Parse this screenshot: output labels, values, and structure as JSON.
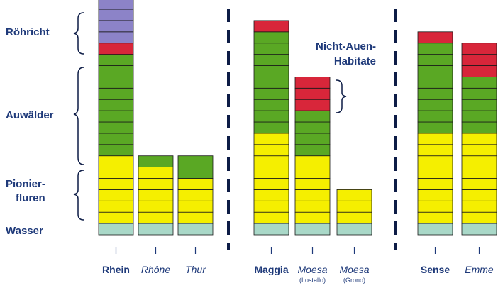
{
  "chart_data": {
    "type": "bar",
    "stacked": true,
    "title": "",
    "xlabel": "",
    "ylabel": "",
    "segment_height_levels": [
      "Wasser",
      "Pionierfluren",
      "Auwälder",
      "Röhricht"
    ],
    "y_axis_labels": [
      {
        "key": "roehricht",
        "text": "Röhricht"
      },
      {
        "key": "auwaelder",
        "text": "Auwälder"
      },
      {
        "key": "pionier_line1",
        "text": "Pionier-"
      },
      {
        "key": "pionier_line2",
        "text": "fluren"
      },
      {
        "key": "wasser",
        "text": "Wasser"
      }
    ],
    "annotation": {
      "line1": "Nicht-Auen-",
      "line2": "Habitate"
    },
    "colors": {
      "Wasser": "#a9d8c8",
      "Pionierfluren": "#f5ef00",
      "Auwälder": "#5aa824",
      "Nicht-Auen-Habitate": "#d8263a",
      "Röhricht": "#8c83c8",
      "label": "#1f3a7a",
      "divider": "#0d1c46"
    },
    "categories": [
      {
        "label": "Rhein",
        "sublabel": "",
        "italic": false,
        "group": 1,
        "segments": [
          {
            "type": "Wasser",
            "count": 1
          },
          {
            "type": "Pionierfluren",
            "count": 6
          },
          {
            "type": "Auwälder",
            "count": 9
          },
          {
            "type": "Nicht-Auen-Habitate",
            "count": 1
          },
          {
            "type": "Röhricht",
            "count": 4
          }
        ]
      },
      {
        "label": "Rhône",
        "sublabel": "",
        "italic": true,
        "group": 1,
        "segments": [
          {
            "type": "Wasser",
            "count": 1
          },
          {
            "type": "Pionierfluren",
            "count": 5
          },
          {
            "type": "Auwälder",
            "count": 1
          }
        ]
      },
      {
        "label": "Thur",
        "sublabel": "",
        "italic": true,
        "group": 1,
        "segments": [
          {
            "type": "Wasser",
            "count": 1
          },
          {
            "type": "Pionierfluren",
            "count": 4
          },
          {
            "type": "Auwälder",
            "count": 2
          }
        ]
      },
      {
        "label": "Maggia",
        "sublabel": "",
        "italic": false,
        "group": 2,
        "segments": [
          {
            "type": "Wasser",
            "count": 1
          },
          {
            "type": "Pionierfluren",
            "count": 8
          },
          {
            "type": "Auwälder",
            "count": 9
          },
          {
            "type": "Nicht-Auen-Habitate",
            "count": 1
          }
        ]
      },
      {
        "label": "Moesa",
        "sublabel": "(Lostallo)",
        "italic": true,
        "group": 2,
        "segments": [
          {
            "type": "Wasser",
            "count": 1
          },
          {
            "type": "Pionierfluren",
            "count": 6
          },
          {
            "type": "Auwälder",
            "count": 4
          },
          {
            "type": "Nicht-Auen-Habitate",
            "count": 3
          }
        ]
      },
      {
        "label": "Moesa",
        "sublabel": "(Grono)",
        "italic": true,
        "group": 2,
        "segments": [
          {
            "type": "Wasser",
            "count": 1
          },
          {
            "type": "Pionierfluren",
            "count": 3
          }
        ]
      },
      {
        "label": "Sense",
        "sublabel": "",
        "italic": false,
        "group": 3,
        "segments": [
          {
            "type": "Wasser",
            "count": 1
          },
          {
            "type": "Pionierfluren",
            "count": 8
          },
          {
            "type": "Auwälder",
            "count": 8
          },
          {
            "type": "Nicht-Auen-Habitate",
            "count": 1
          }
        ]
      },
      {
        "label": "Emme",
        "sublabel": "",
        "italic": true,
        "group": 3,
        "segments": [
          {
            "type": "Wasser",
            "count": 1
          },
          {
            "type": "Pionierfluren",
            "count": 8
          },
          {
            "type": "Auwälder",
            "count": 5
          },
          {
            "type": "Nicht-Auen-Habitate",
            "count": 3
          }
        ]
      }
    ]
  }
}
